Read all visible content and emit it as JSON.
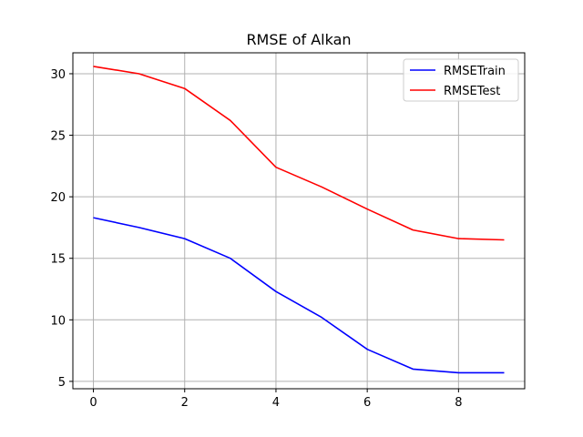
{
  "chart_data": {
    "type": "line",
    "title": "RMSE of Alkan",
    "xlabel": "",
    "ylabel": "",
    "x": [
      0,
      1,
      2,
      3,
      4,
      5,
      6,
      7,
      8,
      9
    ],
    "xlim": [
      -0.45,
      9.45
    ],
    "ylim": [
      4.4,
      31.7
    ],
    "xticks": [
      0,
      2,
      4,
      6,
      8
    ],
    "yticks": [
      5,
      10,
      15,
      20,
      25,
      30
    ],
    "grid": true,
    "legend_position": "top-right",
    "series": [
      {
        "name": "RMSETrain",
        "color": "#0000ff",
        "values": [
          18.3,
          17.5,
          16.6,
          15.0,
          12.3,
          10.2,
          7.6,
          6.0,
          5.7,
          5.7
        ]
      },
      {
        "name": "RMSETest",
        "color": "#ff0000",
        "values": [
          30.6,
          30.0,
          28.8,
          26.2,
          22.4,
          20.8,
          19.0,
          17.3,
          16.6,
          16.5
        ]
      }
    ]
  }
}
